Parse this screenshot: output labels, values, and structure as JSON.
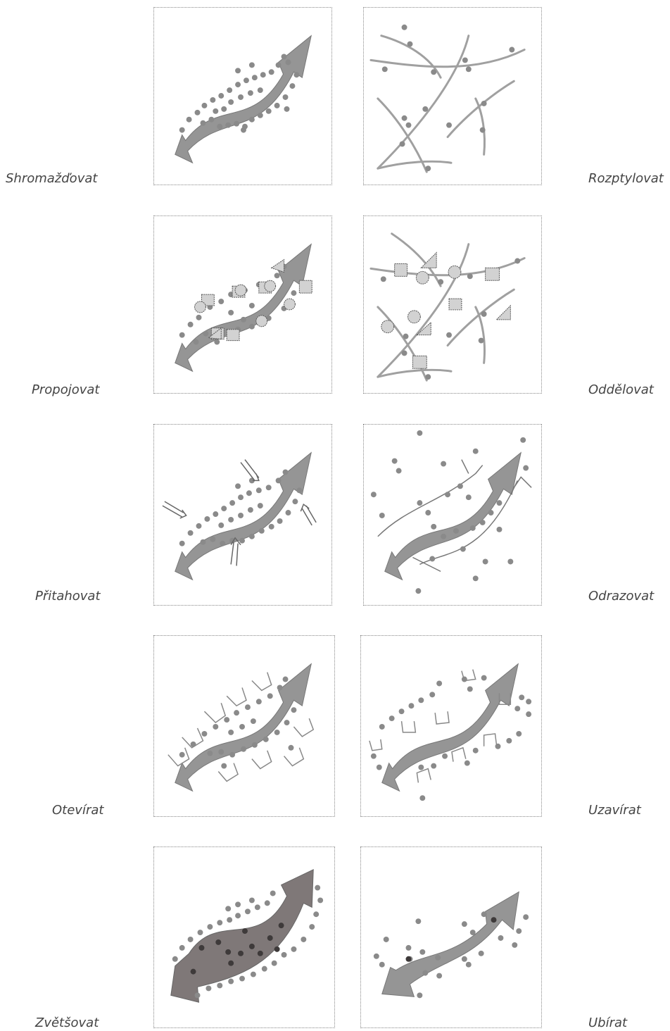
{
  "colors": {
    "dot": "#8a8a8a",
    "arrow": "#959595",
    "arrow_dark": "#7f7878",
    "line": "#a0a0a0",
    "shape_fill": "#d2d2d2",
    "border": "#888888",
    "label": "#444444"
  },
  "rows": [
    {
      "left": {
        "label": "Shromažďovat",
        "concept": "gather"
      },
      "right": {
        "label": "Rozptylovat",
        "concept": "scatter"
      }
    },
    {
      "left": {
        "label": "Propojovat",
        "concept": "connect"
      },
      "right": {
        "label": "Oddělovat",
        "concept": "separate"
      }
    },
    {
      "left": {
        "label": "Přitahovat",
        "concept": "attract"
      },
      "right": {
        "label": "Odrazovat",
        "concept": "repel"
      }
    },
    {
      "left": {
        "label": "Otevírat",
        "concept": "open"
      },
      "right": {
        "label": "Uzavírat",
        "concept": "close"
      }
    },
    {
      "left": {
        "label": "Zvětšovat",
        "concept": "enlarge"
      },
      "right": {
        "label": "Ubírat",
        "concept": "reduce"
      }
    }
  ]
}
